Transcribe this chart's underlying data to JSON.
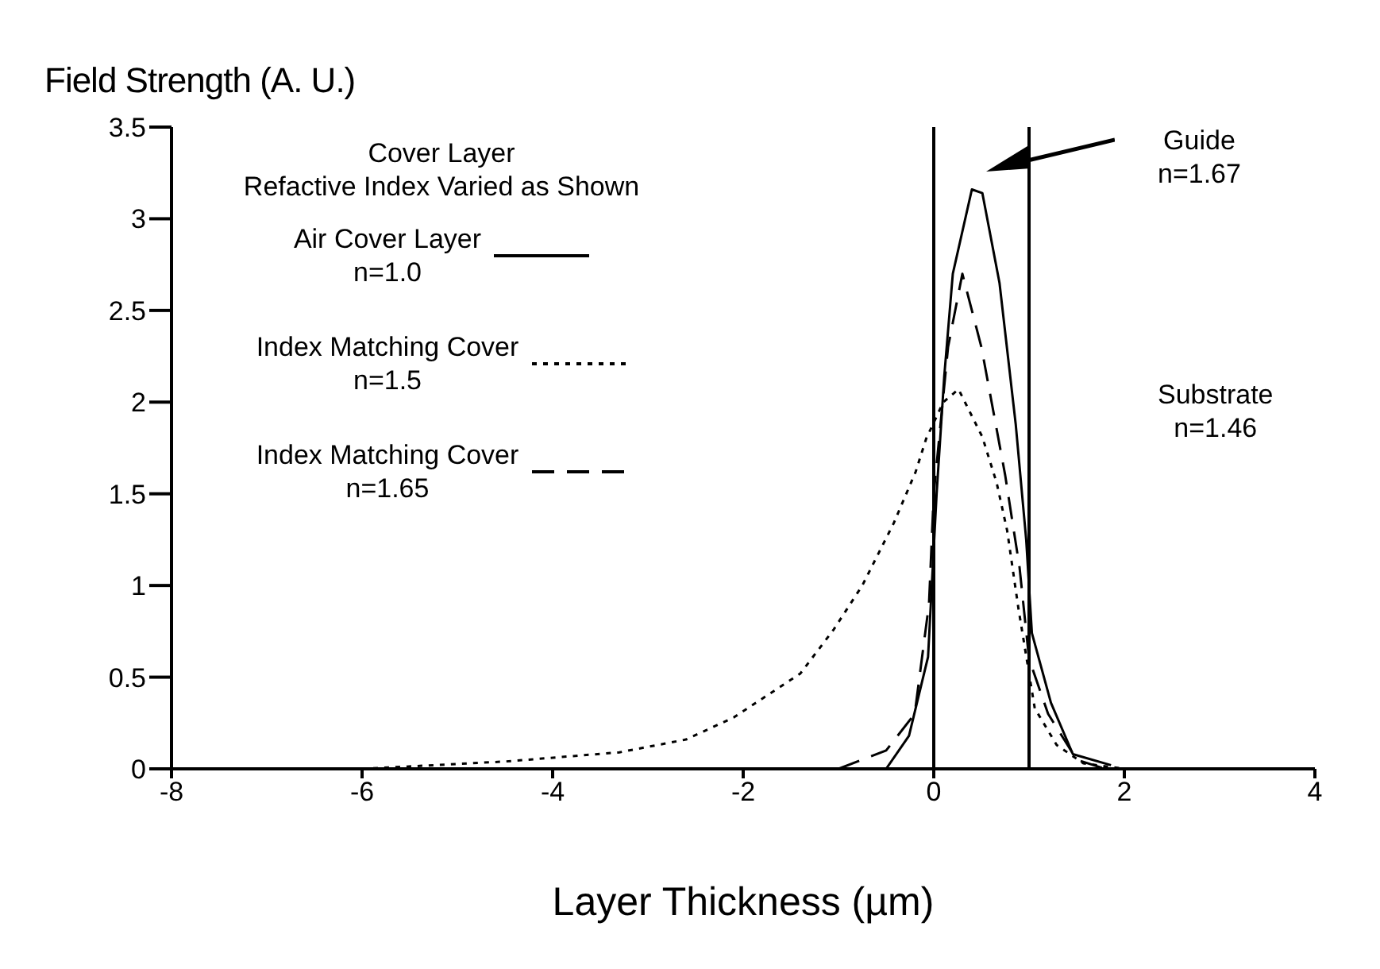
{
  "chart_data": {
    "type": "line",
    "ylabel": "Field Strength (A. U.)",
    "xlabel": "Layer Thickness (µm)",
    "legend_title": "Cover Layer\nRefactive Index Varied as Shown",
    "legend": "top left",
    "marker": "none",
    "xlim": [
      -8,
      4
    ],
    "xticks": [
      -8,
      -6,
      -4,
      -2,
      0,
      2,
      4
    ],
    "ylim": [
      0,
      3.5
    ],
    "yticks": [
      0,
      0.5,
      1,
      1.5,
      2,
      2.5,
      3,
      3.5
    ],
    "ref_lines": [
      {
        "axis": "x",
        "value": 0,
        "color": "#000000"
      },
      {
        "axis": "x",
        "value": 1,
        "color": "#000000"
      }
    ],
    "annotations": [
      "Guide\nn=1.67",
      "Substrate\nn=1.46"
    ],
    "series": [
      {
        "name": "Air Cover Layer\nn=1.0",
        "color": "#000000",
        "line_style": "solid",
        "x": [
          -0.5,
          -0.26,
          -0.06,
          0.03,
          0.11,
          0.2,
          0.4,
          0.51,
          0.69,
          0.86,
          0.97,
          1.03,
          1.23,
          1.46,
          1.86
        ],
        "values": [
          0,
          0.18,
          0.61,
          1.5,
          2.14,
          2.7,
          3.16,
          3.14,
          2.65,
          1.88,
          1.25,
          0.74,
          0.36,
          0.08,
          0.02
        ]
      },
      {
        "name": "Index Matching Cover\nn=1.5",
        "color": "#000000",
        "line_style": "dotted",
        "x": [
          -6,
          -4.5,
          -3.3,
          -2.6,
          -2.1,
          -1.4,
          -1.05,
          -0.75,
          -0.42,
          -0.19,
          -0.08,
          0.1,
          0.26,
          0.51,
          0.66,
          0.77,
          0.89,
          1.06,
          1.29,
          1.57,
          2
        ],
        "values": [
          0,
          0.04,
          0.09,
          0.16,
          0.28,
          0.52,
          0.76,
          1,
          1.34,
          1.62,
          1.8,
          2.0,
          2.07,
          1.81,
          1.56,
          1.3,
          0.87,
          0.33,
          0.13,
          0.03,
          0
        ]
      },
      {
        "name": "Index Matching Cover\nn=1.65",
        "color": "#000000",
        "line_style": "dashed",
        "x": [
          -1,
          -0.5,
          -0.2,
          -0.05,
          0,
          0.15,
          0.3,
          0.5,
          0.75,
          0.9,
          1,
          1.2,
          1.5,
          1.8
        ],
        "values": [
          0,
          0.1,
          0.3,
          0.9,
          1.5,
          2.3,
          2.7,
          2.3,
          1.6,
          1.1,
          0.6,
          0.3,
          0.05,
          0
        ]
      }
    ]
  }
}
